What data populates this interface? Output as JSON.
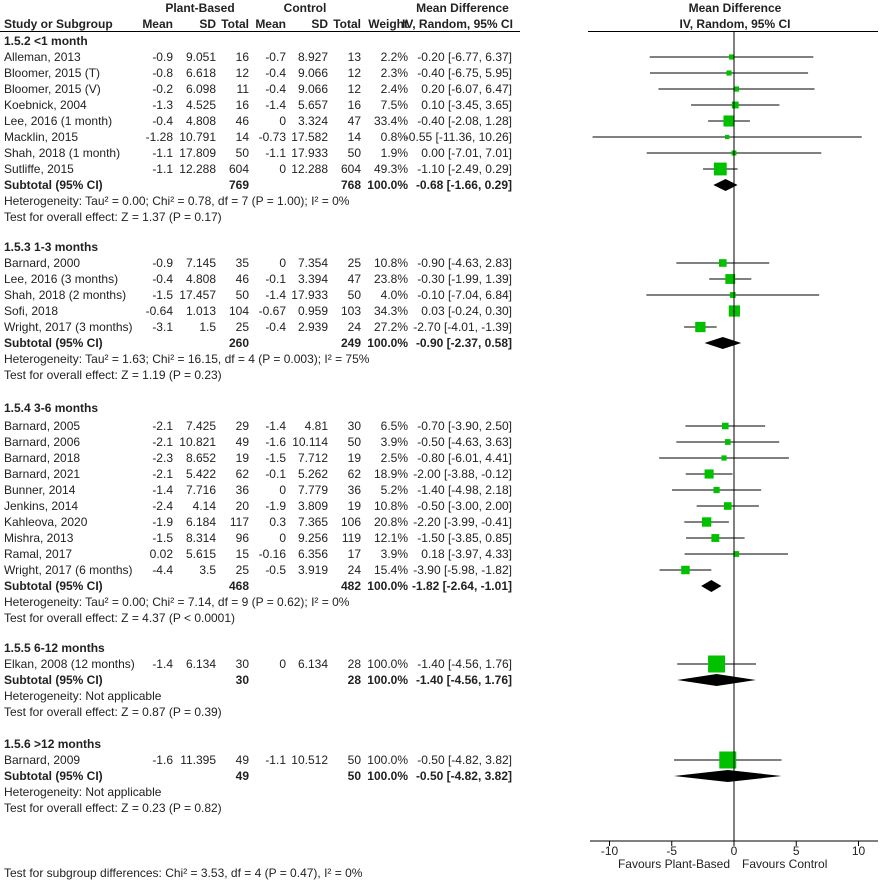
{
  "header": {
    "group_plant": "Plant-Based",
    "group_control": "Control",
    "md_title": "Mean Difference",
    "md_sub": "IV, Random, 95% CI",
    "plot_title": "Mean Difference",
    "plot_sub": "IV, Random, 95% CI",
    "col_study": "Study or Subgroup",
    "col_mean": "Mean",
    "col_sd": "SD",
    "col_total": "Total",
    "col_mean2": "Mean",
    "col_sd2": "SD",
    "col_total2": "Total",
    "col_weight": "Weight"
  },
  "colors": {
    "study_marker": "#00c000",
    "diamond": "#000000",
    "ci_line": "#000000"
  },
  "chart_data": {
    "type": "forest",
    "xlim": [
      -10,
      10
    ],
    "ticks": [
      "-10",
      "-5",
      "0",
      "5",
      "10"
    ],
    "tick_values": [
      -10,
      -5,
      0,
      5,
      10
    ],
    "xlabel_left": "Favours Plant-Based",
    "xlabel_right": "Favours Control",
    "subgroups": [
      {
        "title": "1.5.2 <1 month",
        "studies": [
          {
            "name": "Alleman, 2013",
            "m1": "-0.9",
            "sd1": "9.051",
            "n1": "16",
            "m2": "-0.7",
            "sd2": "8.927",
            "n2": "13",
            "w": "2.2%",
            "ci": "-0.20 [-6.77, 6.37]",
            "md": -0.2,
            "lo": -6.77,
            "hi": 6.37,
            "wt": 2.2
          },
          {
            "name": "Bloomer, 2015 (T)",
            "m1": "-0.8",
            "sd1": "6.618",
            "n1": "12",
            "m2": "-0.4",
            "sd2": "9.066",
            "n2": "12",
            "w": "2.3%",
            "ci": "-0.40 [-6.75, 5.95]",
            "md": -0.4,
            "lo": -6.75,
            "hi": 5.95,
            "wt": 2.3
          },
          {
            "name": "Bloomer, 2015 (V)",
            "m1": "-0.2",
            "sd1": "6.098",
            "n1": "11",
            "m2": "-0.4",
            "sd2": "9.066",
            "n2": "12",
            "w": "2.4%",
            "ci": "0.20 [-6.07, 6.47]",
            "md": 0.2,
            "lo": -6.07,
            "hi": 6.47,
            "wt": 2.4
          },
          {
            "name": "Koebnick, 2004",
            "m1": "-1.3",
            "sd1": "4.525",
            "n1": "16",
            "m2": "-1.4",
            "sd2": "5.657",
            "n2": "16",
            "w": "7.5%",
            "ci": "0.10 [-3.45, 3.65]",
            "md": 0.1,
            "lo": -3.45,
            "hi": 3.65,
            "wt": 7.5
          },
          {
            "name": "Lee, 2016 (1 month)",
            "m1": "-0.4",
            "sd1": "4.808",
            "n1": "46",
            "m2": "0",
            "sd2": "3.324",
            "n2": "47",
            "w": "33.4%",
            "ci": "-0.40 [-2.08, 1.28]",
            "md": -0.4,
            "lo": -2.08,
            "hi": 1.28,
            "wt": 33.4
          },
          {
            "name": "Macklin, 2015",
            "m1": "-1.28",
            "sd1": "10.791",
            "n1": "14",
            "m2": "-0.73",
            "sd2": "17.582",
            "n2": "14",
            "w": "0.8%",
            "ci": "-0.55 [-11.36, 10.26]",
            "md": -0.55,
            "lo": -11.36,
            "hi": 10.26,
            "wt": 0.8
          },
          {
            "name": "Shah, 2018 (1 month)",
            "m1": "-1.1",
            "sd1": "17.809",
            "n1": "50",
            "m2": "-1.1",
            "sd2": "17.933",
            "n2": "50",
            "w": "1.9%",
            "ci": "0.00 [-7.01, 7.01]",
            "md": 0.0,
            "lo": -7.01,
            "hi": 7.01,
            "wt": 1.9
          },
          {
            "name": "Sutliffe, 2015",
            "m1": "-1.1",
            "sd1": "12.288",
            "n1": "604",
            "m2": "0",
            "sd2": "12.288",
            "n2": "604",
            "w": "49.3%",
            "ci": "-1.10 [-2.49, 0.29]",
            "md": -1.1,
            "lo": -2.49,
            "hi": 0.29,
            "wt": 49.3
          }
        ],
        "subtotal": {
          "label": "Subtotal (95% CI)",
          "n1": "769",
          "n2": "768",
          "w": "100.0%",
          "ci": "-0.68 [-1.66, 0.29]",
          "md": -0.68,
          "lo": -1.66,
          "hi": 0.29
        },
        "heterogeneity": "Heterogeneity: Tau² = 0.00; Chi² = 0.78, df = 7 (P = 1.00); I² = 0%",
        "overall": "Test for overall effect: Z = 1.37 (P = 0.17)"
      },
      {
        "title": "1.5.3 1-3 months",
        "studies": [
          {
            "name": "Barnard, 2000",
            "m1": "-0.9",
            "sd1": "7.145",
            "n1": "35",
            "m2": "0",
            "sd2": "7.354",
            "n2": "25",
            "w": "10.8%",
            "ci": "-0.90 [-4.63, 2.83]",
            "md": -0.9,
            "lo": -4.63,
            "hi": 2.83,
            "wt": 10.8
          },
          {
            "name": "Lee, 2016 (3 months)",
            "m1": "-0.4",
            "sd1": "4.808",
            "n1": "46",
            "m2": "-0.1",
            "sd2": "3.394",
            "n2": "47",
            "w": "23.8%",
            "ci": "-0.30 [-1.99, 1.39]",
            "md": -0.3,
            "lo": -1.99,
            "hi": 1.39,
            "wt": 23.8
          },
          {
            "name": "Shah, 2018 (2 months)",
            "m1": "-1.5",
            "sd1": "17.457",
            "n1": "50",
            "m2": "-1.4",
            "sd2": "17.933",
            "n2": "50",
            "w": "4.0%",
            "ci": "-0.10 [-7.04, 6.84]",
            "md": -0.1,
            "lo": -7.04,
            "hi": 6.84,
            "wt": 4.0
          },
          {
            "name": "Sofi, 2018",
            "m1": "-0.64",
            "sd1": "1.013",
            "n1": "104",
            "m2": "-0.67",
            "sd2": "0.959",
            "n2": "103",
            "w": "34.3%",
            "ci": "0.03 [-0.24, 0.30]",
            "md": 0.03,
            "lo": -0.24,
            "hi": 0.3,
            "wt": 34.3
          },
          {
            "name": "Wright, 2017 (3 months)",
            "m1": "-3.1",
            "sd1": "1.5",
            "n1": "25",
            "m2": "-0.4",
            "sd2": "2.939",
            "n2": "24",
            "w": "27.2%",
            "ci": "-2.70 [-4.01, -1.39]",
            "md": -2.7,
            "lo": -4.01,
            "hi": -1.39,
            "wt": 27.2
          }
        ],
        "subtotal": {
          "label": "Subtotal (95% CI)",
          "n1": "260",
          "n2": "249",
          "w": "100.0%",
          "ci": "-0.90 [-2.37, 0.58]",
          "md": -0.9,
          "lo": -2.37,
          "hi": 0.58
        },
        "heterogeneity": "Heterogeneity: Tau² = 1.63; Chi² = 16.15, df = 4 (P = 0.003); I² = 75%",
        "overall": "Test for overall effect: Z = 1.19 (P = 0.23)"
      },
      {
        "title": "1.5.4 3-6 months",
        "studies": [
          {
            "name": "Barnard, 2005",
            "m1": "-2.1",
            "sd1": "7.425",
            "n1": "29",
            "m2": "-1.4",
            "sd2": "4.81",
            "n2": "30",
            "w": "6.5%",
            "ci": "-0.70 [-3.90, 2.50]",
            "md": -0.7,
            "lo": -3.9,
            "hi": 2.5,
            "wt": 6.5
          },
          {
            "name": "Barnard, 2006",
            "m1": "-2.1",
            "sd1": "10.821",
            "n1": "49",
            "m2": "-1.6",
            "sd2": "10.114",
            "n2": "50",
            "w": "3.9%",
            "ci": "-0.50 [-4.63, 3.63]",
            "md": -0.5,
            "lo": -4.63,
            "hi": 3.63,
            "wt": 3.9
          },
          {
            "name": "Barnard, 2018",
            "m1": "-2.3",
            "sd1": "8.652",
            "n1": "19",
            "m2": "-1.5",
            "sd2": "7.712",
            "n2": "19",
            "w": "2.5%",
            "ci": "-0.80 [-6.01, 4.41]",
            "md": -0.8,
            "lo": -6.01,
            "hi": 4.41,
            "wt": 2.5
          },
          {
            "name": "Barnard, 2021",
            "m1": "-2.1",
            "sd1": "5.422",
            "n1": "62",
            "m2": "-0.1",
            "sd2": "5.262",
            "n2": "62",
            "w": "18.9%",
            "ci": "-2.00 [-3.88, -0.12]",
            "md": -2.0,
            "lo": -3.88,
            "hi": -0.12,
            "wt": 18.9
          },
          {
            "name": "Bunner, 2014",
            "m1": "-1.4",
            "sd1": "7.716",
            "n1": "36",
            "m2": "0",
            "sd2": "7.779",
            "n2": "36",
            "w": "5.2%",
            "ci": "-1.40 [-4.98, 2.18]",
            "md": -1.4,
            "lo": -4.98,
            "hi": 2.18,
            "wt": 5.2
          },
          {
            "name": "Jenkins, 2014",
            "m1": "-2.4",
            "sd1": "4.14",
            "n1": "20",
            "m2": "-1.9",
            "sd2": "3.809",
            "n2": "19",
            "w": "10.8%",
            "ci": "-0.50 [-3.00, 2.00]",
            "md": -0.5,
            "lo": -3.0,
            "hi": 2.0,
            "wt": 10.8
          },
          {
            "name": "Kahleova, 2020",
            "m1": "-1.9",
            "sd1": "6.184",
            "n1": "117",
            "m2": "0.3",
            "sd2": "7.365",
            "n2": "106",
            "w": "20.8%",
            "ci": "-2.20 [-3.99, -0.41]",
            "md": -2.2,
            "lo": -3.99,
            "hi": -0.41,
            "wt": 20.8
          },
          {
            "name": "Mishra, 2013",
            "m1": "-1.5",
            "sd1": "8.314",
            "n1": "96",
            "m2": "0",
            "sd2": "9.256",
            "n2": "119",
            "w": "12.1%",
            "ci": "-1.50 [-3.85, 0.85]",
            "md": -1.5,
            "lo": -3.85,
            "hi": 0.85,
            "wt": 12.1
          },
          {
            "name": "Ramal, 2017",
            "m1": "0.02",
            "sd1": "5.615",
            "n1": "15",
            "m2": "-0.16",
            "sd2": "6.356",
            "n2": "17",
            "w": "3.9%",
            "ci": "0.18 [-3.97, 4.33]",
            "md": 0.18,
            "lo": -3.97,
            "hi": 4.33,
            "wt": 3.9
          },
          {
            "name": "Wright, 2017 (6 months)",
            "m1": "-4.4",
            "sd1": "3.5",
            "n1": "25",
            "m2": "-0.5",
            "sd2": "3.919",
            "n2": "24",
            "w": "15.4%",
            "ci": "-3.90 [-5.98, -1.82]",
            "md": -3.9,
            "lo": -5.98,
            "hi": -1.82,
            "wt": 15.4
          }
        ],
        "subtotal": {
          "label": "Subtotal (95% CI)",
          "n1": "468",
          "n2": "482",
          "w": "100.0%",
          "ci": "-1.82 [-2.64, -1.01]",
          "md": -1.82,
          "lo": -2.64,
          "hi": -1.01
        },
        "heterogeneity": "Heterogeneity: Tau² = 0.00; Chi² = 7.14, df = 9 (P = 0.62); I² = 0%",
        "overall": "Test for overall effect: Z = 4.37 (P < 0.0001)"
      },
      {
        "title": "1.5.5 6-12 months",
        "studies": [
          {
            "name": "Elkan, 2008 (12 months)",
            "m1": "-1.4",
            "sd1": "6.134",
            "n1": "30",
            "m2": "0",
            "sd2": "6.134",
            "n2": "28",
            "w": "100.0%",
            "ci": "-1.40 [-4.56, 1.76]",
            "md": -1.4,
            "lo": -4.56,
            "hi": 1.76,
            "wt": 100
          }
        ],
        "subtotal": {
          "label": "Subtotal (95% CI)",
          "n1": "30",
          "n2": "28",
          "w": "100.0%",
          "ci": "-1.40 [-4.56, 1.76]",
          "md": -1.4,
          "lo": -4.56,
          "hi": 1.76
        },
        "heterogeneity": "Heterogeneity: Not applicable",
        "overall": "Test for overall effect: Z = 0.87 (P = 0.39)"
      },
      {
        "title": "1.5.6 >12 months",
        "studies": [
          {
            "name": "Barnard, 2009",
            "m1": "-1.6",
            "sd1": "11.395",
            "n1": "49",
            "m2": "-1.1",
            "sd2": "10.512",
            "n2": "50",
            "w": "100.0%",
            "ci": "-0.50 [-4.82, 3.82]",
            "md": -0.5,
            "lo": -4.82,
            "hi": 3.82,
            "wt": 100
          }
        ],
        "subtotal": {
          "label": "Subtotal (95% CI)",
          "n1": "49",
          "n2": "50",
          "w": "100.0%",
          "ci": "-0.50 [-4.82, 3.82]",
          "md": -0.5,
          "lo": -4.82,
          "hi": 3.82
        },
        "heterogeneity": "Heterogeneity: Not applicable",
        "overall": "Test for overall effect: Z = 0.23 (P = 0.82)"
      }
    ],
    "footer": "Test for subgroup differences: Chi² = 3.53, df = 4 (P = 0.47), I² = 0%"
  }
}
